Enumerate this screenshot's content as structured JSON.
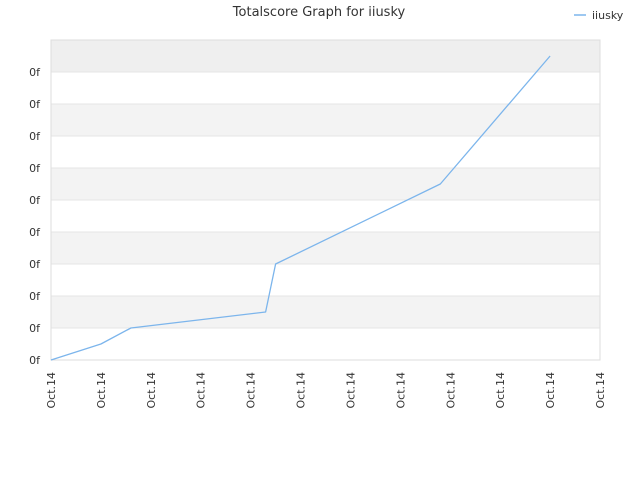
{
  "chart_data": {
    "type": "line",
    "title": "Totalscore Graph for iiusky",
    "xlabel": "",
    "ylabel": "",
    "y_tick_labels": [
      "0f",
      "0f",
      "0f",
      "0f",
      "0f",
      "0f",
      "0f",
      "0f",
      "0f",
      "0f"
    ],
    "x_tick_labels": [
      "Oct.14",
      "Oct.14",
      "Oct.14",
      "Oct.14",
      "Oct.14",
      "Oct.14",
      "Oct.14",
      "Oct.14",
      "Oct.14",
      "Oct.14",
      "Oct.14",
      "Oct.14"
    ],
    "xlim": [
      0,
      11
    ],
    "ylim": [
      0,
      10
    ],
    "grid": true,
    "legend_position": "top-right",
    "series": [
      {
        "name": "iiusky",
        "color": "#7cb5ec",
        "x": [
          0,
          1,
          1.6,
          4.3,
          4.5,
          7.8,
          10
        ],
        "y": [
          0,
          0.5,
          1.0,
          1.5,
          3.0,
          5.5,
          9.5
        ]
      }
    ]
  }
}
